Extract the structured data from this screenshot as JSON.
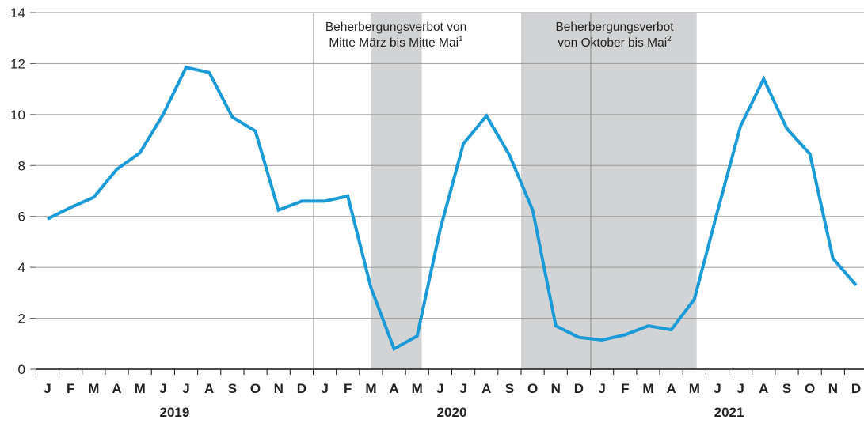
{
  "chart_data": {
    "type": "line",
    "categories": [
      "J",
      "F",
      "M",
      "A",
      "M",
      "J",
      "J",
      "A",
      "S",
      "O",
      "N",
      "D",
      "J",
      "F",
      "M",
      "A",
      "M",
      "J",
      "J",
      "A",
      "S",
      "O",
      "N",
      "D",
      "J",
      "F",
      "M",
      "A",
      "M",
      "J",
      "J",
      "A",
      "S",
      "O",
      "N",
      "D"
    ],
    "years": [
      "2019",
      "2020",
      "2021"
    ],
    "series": [
      {
        "color": "#1a9bd7",
        "values": [
          5.9,
          6.35,
          6.75,
          7.85,
          8.5,
          10.0,
          11.85,
          11.65,
          9.9,
          9.35,
          6.25,
          6.6,
          6.6,
          6.8,
          3.2,
          0.8,
          1.3,
          5.5,
          8.85,
          9.95,
          8.4,
          6.25,
          1.7,
          1.25,
          1.15,
          1.35,
          1.7,
          1.55,
          2.75,
          6.2,
          9.55,
          11.4,
          9.45,
          8.45,
          4.35,
          3.3
        ]
      }
    ],
    "ylim": [
      0,
      14
    ],
    "yticks": [
      0,
      2,
      4,
      6,
      8,
      10,
      12,
      14
    ],
    "grid": true,
    "shaded": [
      {
        "start": 14,
        "end": 16.2,
        "color": "#d1d3d5",
        "lines": [
          "Beherbergungsverbot von",
          "Mitte März bis Mitte Mai"
        ],
        "note": "1"
      },
      {
        "start": 20.5,
        "end": 28.1,
        "color": "#d1d3d5",
        "lines": [
          "Beherbergungsverbot",
          "von Oktober bis Mai"
        ],
        "note": "2"
      }
    ]
  }
}
